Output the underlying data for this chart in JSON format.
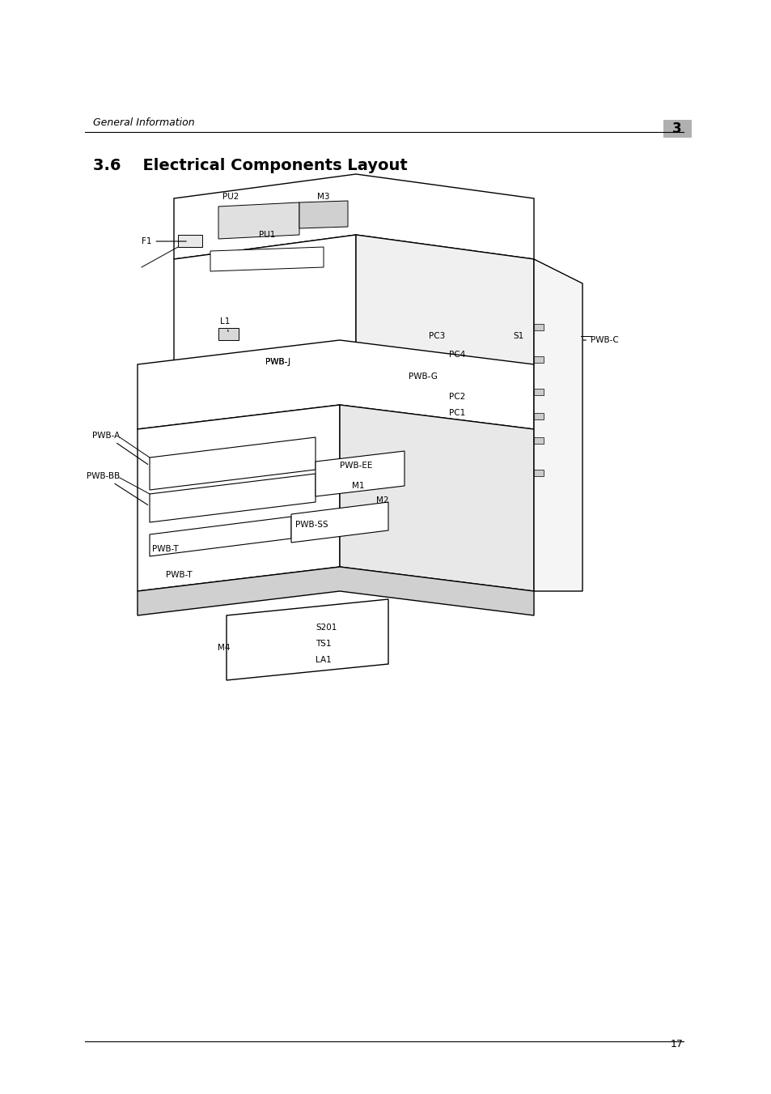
{
  "page_bg": "#ffffff",
  "header_text": "General Information",
  "header_chapter": "3",
  "section_title": "3.6    Electrical Components Layout",
  "footer_page": "17",
  "diagram_image_path": null,
  "components": [
    "PU2",
    "M3",
    "F1",
    "PU1",
    "PC3",
    "S1",
    "PWB-C",
    "PWB-A",
    "L1",
    "PWB-J",
    "PC4",
    "PWB-BB",
    "PWB-EE",
    "M1",
    "PWB-G",
    "PC2",
    "PC1",
    "PWB-T",
    "PWB-SS",
    "M2",
    "M4",
    "S201",
    "TS1",
    "LA1"
  ],
  "title_fontsize": 14,
  "header_fontsize": 9,
  "footer_fontsize": 9,
  "body_color": "#000000",
  "chapter_box_color": "#b0b0b0"
}
